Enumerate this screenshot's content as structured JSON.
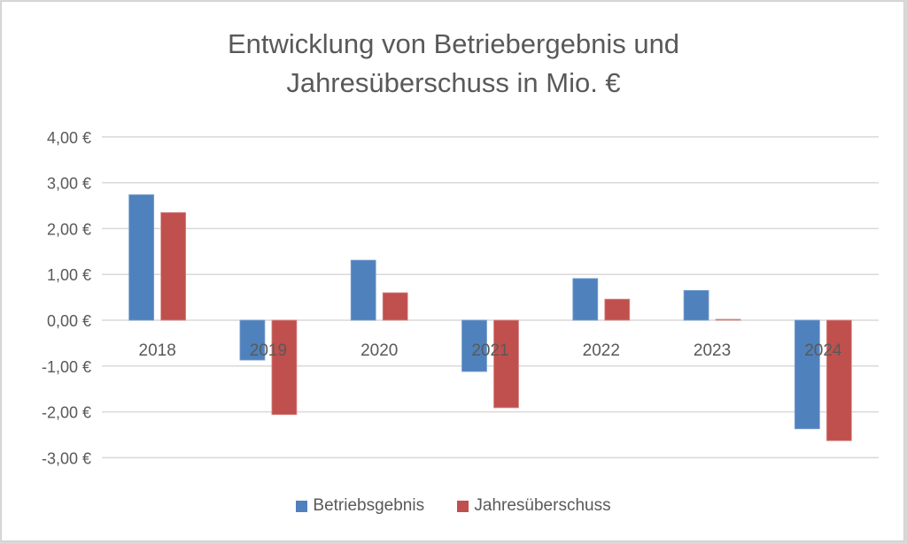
{
  "chart_data": {
    "type": "bar",
    "title_line1": "Entwicklung von Betriebergebnis und",
    "title_line2": "Jahresüberschuss in Mio. €",
    "xlabel": "",
    "ylabel": "",
    "categories": [
      "2018",
      "2019",
      "2020",
      "2021",
      "2022",
      "2023",
      "2024"
    ],
    "series": [
      {
        "name": "Betriebsgebnis",
        "color": "#4f81bd",
        "values": [
          2.74,
          -0.87,
          1.31,
          -1.12,
          0.91,
          0.65,
          -2.37
        ]
      },
      {
        "name": "Jahresüberschuss",
        "color": "#c0504d",
        "values": [
          2.35,
          -2.06,
          0.6,
          -1.91,
          0.46,
          0.02,
          -2.63
        ]
      }
    ],
    "ylim": [
      -3,
      4
    ],
    "yticks": [
      4,
      3,
      2,
      1,
      0,
      -1,
      -2,
      -3
    ],
    "ytick_labels": [
      "4,00 €",
      "3,00 €",
      "2,00 €",
      "1,00 €",
      "0,00 €",
      "-1,00 €",
      "-2,00 €",
      "-3,00 €"
    ],
    "grid": true,
    "legend_position": "bottom"
  }
}
